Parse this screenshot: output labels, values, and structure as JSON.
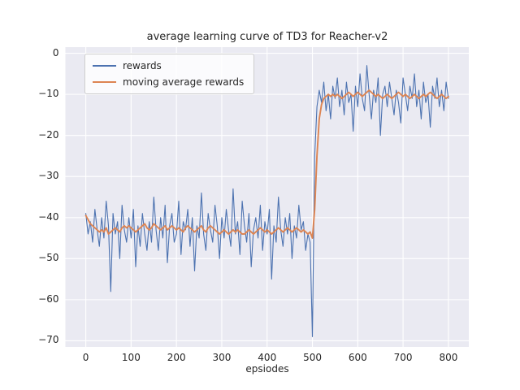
{
  "figure": {
    "title": "average learning curve of TD3 for Reacher-v2",
    "xlabel": "epsiodes",
    "background": "#ffffff",
    "axes_background": "#eaeaf2",
    "grid_color": "#ffffff"
  },
  "legend": {
    "position": "upper left",
    "items": [
      {
        "label": "rewards",
        "color": "#4c72b0"
      },
      {
        "label": "moving average rewards",
        "color": "#dd8452"
      }
    ]
  },
  "chart_data": {
    "type": "line",
    "title": "average learning curve of TD3 for Reacher-v2",
    "xlabel": "epsiodes",
    "ylabel": "",
    "grid": true,
    "x_ticks": [
      0,
      100,
      200,
      300,
      400,
      500,
      600,
      700,
      800
    ],
    "y_ticks": [
      0,
      -10,
      -20,
      -30,
      -40,
      -50,
      -60,
      -70
    ],
    "xlim": [
      -45,
      845
    ],
    "ylim": [
      -71.5,
      1.5
    ],
    "x": [
      0,
      5,
      10,
      15,
      20,
      25,
      30,
      35,
      40,
      45,
      50,
      55,
      60,
      65,
      70,
      75,
      80,
      85,
      90,
      95,
      100,
      105,
      110,
      115,
      120,
      125,
      130,
      135,
      140,
      145,
      150,
      155,
      160,
      165,
      170,
      175,
      180,
      185,
      190,
      195,
      200,
      205,
      210,
      215,
      220,
      225,
      230,
      235,
      240,
      245,
      250,
      255,
      260,
      265,
      270,
      275,
      280,
      285,
      290,
      295,
      300,
      305,
      310,
      315,
      320,
      325,
      330,
      335,
      340,
      345,
      350,
      355,
      360,
      365,
      370,
      375,
      380,
      385,
      390,
      395,
      400,
      405,
      410,
      415,
      420,
      425,
      430,
      435,
      440,
      445,
      450,
      455,
      460,
      465,
      470,
      475,
      480,
      485,
      490,
      495,
      500,
      505,
      510,
      515,
      520,
      525,
      530,
      535,
      540,
      545,
      550,
      555,
      560,
      565,
      570,
      575,
      580,
      585,
      590,
      595,
      600,
      605,
      610,
      615,
      620,
      625,
      630,
      635,
      640,
      645,
      650,
      655,
      660,
      665,
      670,
      675,
      680,
      685,
      690,
      695,
      700,
      705,
      710,
      715,
      720,
      725,
      730,
      735,
      740,
      745,
      750,
      755,
      760,
      765,
      770,
      775,
      780,
      785,
      790,
      795,
      800
    ],
    "series": [
      {
        "name": "rewards",
        "color": "#4c72b0",
        "linewidth": 1.1,
        "values": [
          -39,
          -44,
          -41,
          -46,
          -38,
          -43,
          -47,
          -40,
          -45,
          -36,
          -42,
          -58,
          -39,
          -44,
          -41,
          -50,
          -37,
          -43,
          -46,
          -40,
          -45,
          -38,
          -52,
          -42,
          -47,
          -39,
          -44,
          -48,
          -41,
          -46,
          -35,
          -43,
          -48,
          -40,
          -45,
          -37,
          -51,
          -42,
          -39,
          -46,
          -44,
          -36,
          -49,
          -41,
          -43,
          -38,
          -47,
          -40,
          -53,
          -42,
          -45,
          -34,
          -44,
          -48,
          -39,
          -43,
          -46,
          -37,
          -42,
          -50,
          -40,
          -45,
          -38,
          -43,
          -47,
          -33,
          -44,
          -41,
          -49,
          -36,
          -42,
          -46,
          -39,
          -52,
          -43,
          -40,
          -45,
          -37,
          -48,
          -41,
          -44,
          -38,
          -55,
          -42,
          -46,
          -35,
          -43,
          -47,
          -40,
          -44,
          -39,
          -50,
          -42,
          -45,
          -37,
          -43,
          -41,
          -48,
          -44,
          -46,
          -69,
          -25,
          -13,
          -9,
          -12,
          -7,
          -14,
          -10,
          -16,
          -8,
          -11,
          -6,
          -13,
          -9,
          -15,
          -7,
          -12,
          -10,
          -19,
          -8,
          -13,
          -5,
          -11,
          -14,
          -3,
          -10,
          -16,
          -9,
          -12,
          -6,
          -20,
          -10,
          -8,
          -13,
          -7,
          -11,
          -15,
          -9,
          -12,
          -17,
          -6,
          -10,
          -14,
          -8,
          -11,
          -5,
          -13,
          -9,
          -16,
          -7,
          -12,
          -10,
          -18,
          -8,
          -11,
          -6,
          -13,
          -9,
          -14,
          -7,
          -11
        ],
        "approx_behavior": "noisy around -43 for episodes 0-495, spike to -69 at 500, then noisy around -10 for 505-800"
      },
      {
        "name": "moving average rewards",
        "color": "#dd8452",
        "linewidth": 1.9,
        "values": [
          -39.5,
          -40.5,
          -41.5,
          -42,
          -42.5,
          -43,
          -43.5,
          -43,
          -43.5,
          -42.5,
          -44,
          -43.5,
          -43,
          -42.5,
          -43,
          -43.5,
          -42.5,
          -42,
          -42.5,
          -42,
          -42.5,
          -43,
          -43.5,
          -43,
          -42.5,
          -42,
          -41.5,
          -42.5,
          -43,
          -42.5,
          -41.5,
          -42,
          -42.5,
          -43,
          -42.5,
          -42,
          -43,
          -42.5,
          -42,
          -42.5,
          -43,
          -42.5,
          -43,
          -43.5,
          -42.5,
          -42,
          -42.5,
          -43,
          -43.5,
          -43,
          -42.5,
          -42,
          -43,
          -43.5,
          -42.5,
          -42,
          -42.5,
          -43,
          -43.5,
          -44,
          -43.5,
          -43,
          -43.5,
          -44,
          -43.5,
          -43,
          -43.5,
          -43,
          -43.5,
          -44,
          -44,
          -43.5,
          -43,
          -43.5,
          -44,
          -43.5,
          -43,
          -42.5,
          -43,
          -43.5,
          -43,
          -43.5,
          -44,
          -43.5,
          -43,
          -42.5,
          -43,
          -43.5,
          -43,
          -42.5,
          -43,
          -43.5,
          -43,
          -42.5,
          -43,
          -43.5,
          -43,
          -43.5,
          -44,
          -43.5,
          -45,
          -38,
          -25,
          -16,
          -12.5,
          -11,
          -10.5,
          -10,
          -10.5,
          -10,
          -10.5,
          -10,
          -10.5,
          -11,
          -10.5,
          -10,
          -9.5,
          -10,
          -10.5,
          -10,
          -9.5,
          -10,
          -10.5,
          -10,
          -9.5,
          -9,
          -9.5,
          -10,
          -10.5,
          -10,
          -10.5,
          -11,
          -10.5,
          -10,
          -10.5,
          -11,
          -10.5,
          -10,
          -9.5,
          -10,
          -10.5,
          -10,
          -10.5,
          -11,
          -10.5,
          -10,
          -10.5,
          -11,
          -10.5,
          -10,
          -10.5,
          -10,
          -9.5,
          -10,
          -10.5,
          -11,
          -10.5,
          -10,
          -10.5,
          -11,
          -10.5
        ],
        "approx_behavior": "flat around -43 until episode 500, sharp rise, flat around -10 after"
      }
    ]
  }
}
